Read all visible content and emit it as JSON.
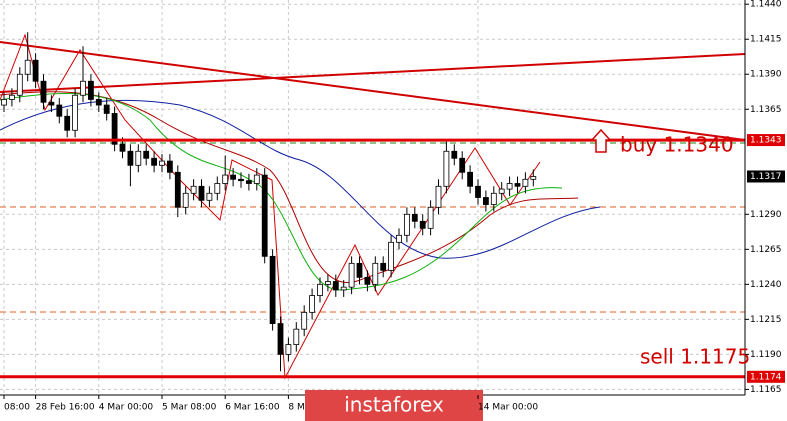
{
  "chart_data": {
    "type": "candlestick",
    "open": [
      1.1368,
      1.1372,
      1.1375,
      1.139,
      1.14,
      1.1385,
      1.137,
      1.1368,
      1.136,
      1.135,
      1.1375,
      1.1385,
      1.1372,
      1.1368,
      1.1362,
      1.134,
      1.1335,
      1.1325,
      1.1335,
      1.133,
      1.1325,
      1.1328,
      1.132,
      1.1295,
      1.1305,
      1.131,
      1.13,
      1.1305,
      1.1312,
      1.1318,
      1.1315,
      1.1314,
      1.1312,
      1.1318,
      1.126,
      1.1212,
      1.119,
      1.1197,
      1.1208,
      1.122,
      1.1232,
      1.124,
      1.1242,
      1.1236,
      1.1238,
      1.1255,
      1.1245,
      1.124,
      1.1255,
      1.125,
      1.127,
      1.1275,
      1.129,
      1.1285,
      1.128,
      1.1295,
      1.131,
      1.1335,
      1.133,
      1.132,
      1.131,
      1.1302,
      1.1297,
      1.1305,
      1.1308,
      1.1312,
      1.131,
      1.1315
    ],
    "high": [
      1.1377,
      1.138,
      1.1395,
      1.142,
      1.1405,
      1.139,
      1.1375,
      1.1373,
      1.1365,
      1.138,
      1.141,
      1.139,
      1.1377,
      1.1373,
      1.1367,
      1.1345,
      1.134,
      1.134,
      1.134,
      1.1335,
      1.1333,
      1.1333,
      1.1325,
      1.131,
      1.1315,
      1.1315,
      1.131,
      1.1317,
      1.1332,
      1.1323,
      1.132,
      1.1319,
      1.1323,
      1.1323,
      1.1265,
      1.1217,
      1.1202,
      1.1213,
      1.1225,
      1.1237,
      1.1245,
      1.1247,
      1.1247,
      1.1243,
      1.126,
      1.126,
      1.125,
      1.126,
      1.126,
      1.1275,
      1.128,
      1.1295,
      1.1295,
      1.129,
      1.13,
      1.1315,
      1.1342,
      1.134,
      1.1335,
      1.1325,
      1.1315,
      1.1307,
      1.131,
      1.1313,
      1.1317,
      1.1317,
      1.132,
      1.1322
    ],
    "low": [
      1.1363,
      1.1367,
      1.137,
      1.1385,
      1.138,
      1.1365,
      1.1363,
      1.1355,
      1.1345,
      1.1345,
      1.137,
      1.1367,
      1.1363,
      1.1357,
      1.1335,
      1.133,
      1.131,
      1.132,
      1.1325,
      1.132,
      1.132,
      1.1315,
      1.1288,
      1.129,
      1.13,
      1.1295,
      1.1295,
      1.13,
      1.1307,
      1.131,
      1.1309,
      1.1307,
      1.1307,
      1.1255,
      1.1207,
      1.1178,
      1.1185,
      1.1192,
      1.1203,
      1.1215,
      1.1227,
      1.1235,
      1.1231,
      1.1231,
      1.1233,
      1.124,
      1.1235,
      1.1235,
      1.1245,
      1.1245,
      1.1265,
      1.127,
      1.128,
      1.1275,
      1.1275,
      1.129,
      1.1305,
      1.1325,
      1.1315,
      1.1305,
      1.1297,
      1.1292,
      1.1292,
      1.13,
      1.1303,
      1.1305,
      1.1305,
      1.131
    ],
    "close": [
      1.1372,
      1.1375,
      1.139,
      1.14,
      1.1385,
      1.137,
      1.1368,
      1.136,
      1.135,
      1.1375,
      1.1385,
      1.1372,
      1.1368,
      1.1362,
      1.134,
      1.1335,
      1.1325,
      1.1335,
      1.133,
      1.1325,
      1.1328,
      1.132,
      1.1295,
      1.1305,
      1.131,
      1.13,
      1.1305,
      1.1312,
      1.1318,
      1.1315,
      1.1314,
      1.1312,
      1.1318,
      1.126,
      1.1212,
      1.119,
      1.1197,
      1.1208,
      1.122,
      1.1232,
      1.124,
      1.1242,
      1.1236,
      1.1238,
      1.1255,
      1.1245,
      1.124,
      1.1255,
      1.125,
      1.127,
      1.1275,
      1.129,
      1.1285,
      1.128,
      1.1295,
      1.131,
      1.1335,
      1.133,
      1.132,
      1.131,
      1.1302,
      1.1297,
      1.1305,
      1.1308,
      1.1312,
      1.131,
      1.1315,
      1.1317
    ],
    "up_color": "#ffffff",
    "down_color": "#000000",
    "ylim": [
      1.1161,
      1.1443
    ],
    "yticks": [
      {
        "value": 1.144,
        "label": "1.1440"
      },
      {
        "value": 1.1415,
        "label": "1.1415"
      },
      {
        "value": 1.139,
        "label": "1.1390"
      },
      {
        "value": 1.1365,
        "label": "1.1365"
      },
      {
        "value": 1.129,
        "label": "1.1290"
      },
      {
        "value": 1.1265,
        "label": "1.1265"
      },
      {
        "value": 1.124,
        "label": "1.1240"
      },
      {
        "value": 1.1215,
        "label": "1.1215"
      },
      {
        "value": 1.119,
        "label": "1.1190"
      },
      {
        "value": 1.1165,
        "label": "1.1165"
      }
    ],
    "xticks": [
      {
        "value": 0,
        "label": "08:00"
      },
      {
        "value": 4,
        "label": "28 Feb 16:00"
      },
      {
        "value": 12,
        "label": "4 Mar 00:00"
      },
      {
        "value": 20,
        "label": "5 Mar 08:00"
      },
      {
        "value": 28,
        "label": "6 Mar 16:00"
      },
      {
        "value": 36,
        "label": "8 M"
      },
      {
        "value": 60,
        "label": "14 Mar 00:00"
      }
    ],
    "grid": true,
    "levels": [
      {
        "value": 1.1343,
        "label": "1.1343",
        "color": "#e00000"
      },
      {
        "value": 1.1317,
        "label": "1.1317",
        "color": "#000000"
      },
      {
        "value": 1.1174,
        "label": "1.1174",
        "color": "#e00000"
      }
    ],
    "annotations": [
      "buy 1.1340",
      "sell 1.1175"
    ],
    "watermark": "instaforex"
  }
}
